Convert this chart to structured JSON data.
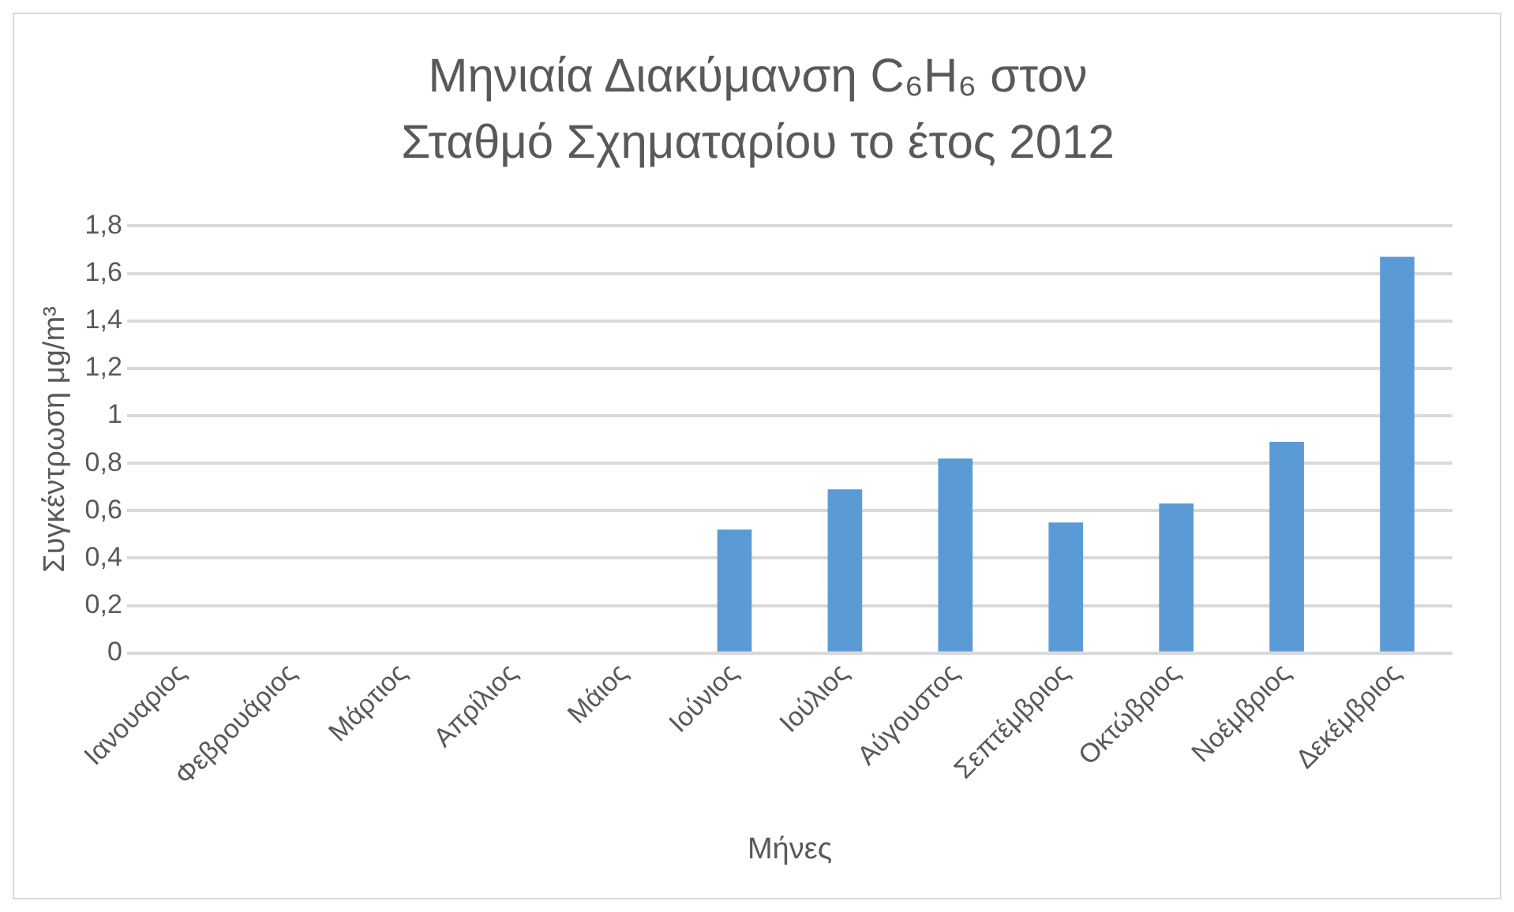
{
  "chart_data": {
    "type": "bar",
    "title": "Μηνιαία Διακύμανση C₆H₆ στον Σταθμό Σχηματαρίου το έτος 2012",
    "xlabel": "Μήνες",
    "ylabel": "Συγκέντρωση μg/m³",
    "categories": [
      "Ιανουαριος",
      "Φεβρουάριος",
      "Μάρτιος",
      "Απρίλιος",
      "Μάιος",
      "Ιούνιος",
      "Ιούλιος",
      "Αύγουστος",
      "Σεπτέμβριος",
      "Οκτώβριος",
      "Νοέμβριος",
      "Δεκέμβριος"
    ],
    "values": [
      null,
      null,
      null,
      null,
      null,
      0.52,
      0.69,
      0.82,
      0.55,
      0.63,
      0.89,
      1.67
    ],
    "color": "#5b9bd5",
    "ylim": [
      0,
      1.8
    ],
    "yticks": [
      0,
      {
        "value": 0.2,
        "label": "0,2"
      },
      {
        "value": 0.4,
        "label": "0,4"
      },
      {
        "value": 0.6,
        "label": "0,6"
      },
      {
        "value": 0.8,
        "label": "0,8"
      },
      1,
      {
        "value": 1.2,
        "label": "1,2"
      },
      {
        "value": 1.4,
        "label": "1,4"
      },
      {
        "value": 1.6,
        "label": "1,6"
      },
      {
        "value": 1.8,
        "label": "1,8"
      }
    ],
    "grid": "y",
    "legend": false
  }
}
